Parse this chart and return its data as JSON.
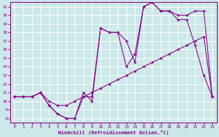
{
  "background_color": "#cce8e8",
  "grid_color": "#b0d8d8",
  "line_color": "#880088",
  "xlabel": "Windchill (Refroidissement éolien,°C)",
  "xlim": [
    -0.5,
    23.5
  ],
  "ylim": [
    7.5,
    21.5
  ],
  "yticks": [
    8,
    9,
    10,
    11,
    12,
    13,
    14,
    15,
    16,
    17,
    18,
    19,
    20,
    21
  ],
  "xticks": [
    0,
    1,
    2,
    3,
    4,
    5,
    6,
    7,
    8,
    9,
    10,
    11,
    12,
    13,
    14,
    15,
    16,
    17,
    18,
    19,
    20,
    21,
    22,
    23
  ],
  "line1_x": [
    0,
    1,
    2,
    3,
    4,
    5,
    6,
    7,
    8,
    9,
    10,
    11,
    12,
    13,
    14,
    15,
    16,
    17,
    18,
    19,
    20,
    21,
    22,
    23
  ],
  "line1_y": [
    10.5,
    10.5,
    10.5,
    11.0,
    9.5,
    8.5,
    8.0,
    8.0,
    11.0,
    10.0,
    18.5,
    18.0,
    18.0,
    14.0,
    15.5,
    21.0,
    21.5,
    20.5,
    20.5,
    19.5,
    19.5,
    16.5,
    13.0,
    10.5
  ],
  "line2_x": [
    0,
    1,
    2,
    3,
    4,
    5,
    6,
    7,
    8,
    9,
    10,
    11,
    12,
    13,
    14,
    15,
    16,
    17,
    18,
    19,
    20,
    21,
    22,
    23
  ],
  "line2_y": [
    10.5,
    10.5,
    10.5,
    11.0,
    9.5,
    8.5,
    8.0,
    8.0,
    10.5,
    10.5,
    18.5,
    18.0,
    18.0,
    17.0,
    14.5,
    21.0,
    21.5,
    20.5,
    20.5,
    20.0,
    20.0,
    20.5,
    20.5,
    10.5
  ],
  "line3_x": [
    0,
    1,
    2,
    3,
    4,
    5,
    6,
    7,
    8,
    9,
    10,
    11,
    12,
    13,
    14,
    15,
    16,
    17,
    18,
    19,
    20,
    21,
    22,
    23
  ],
  "line3_y": [
    10.5,
    10.5,
    10.5,
    11.0,
    10.0,
    9.5,
    9.5,
    10.0,
    10.5,
    11.0,
    11.5,
    12.0,
    12.5,
    13.0,
    13.5,
    14.0,
    14.5,
    15.0,
    15.5,
    16.0,
    16.5,
    17.0,
    17.5,
    10.5
  ]
}
